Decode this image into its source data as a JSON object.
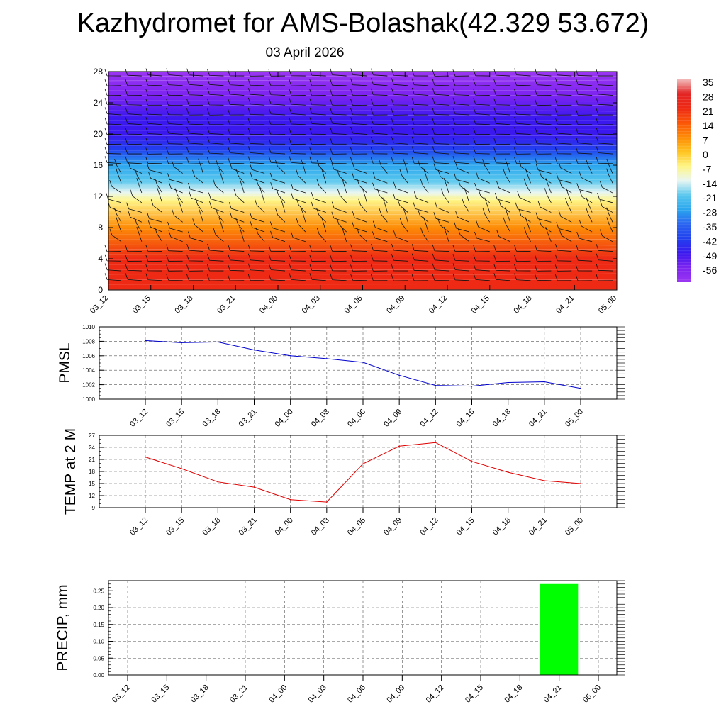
{
  "page": {
    "title": "Kazhydromet for AMS-Bolashak(42.329 53.672)",
    "date": "03 April 2026"
  },
  "time_labels": [
    "03_12",
    "03_15",
    "03_18",
    "03_21",
    "04_00",
    "04_03",
    "04_06",
    "04_09",
    "04_12",
    "04_15",
    "04_18",
    "04_21",
    "05_00"
  ],
  "chart_data": [
    {
      "type": "heatmap",
      "name": "vertical temperature cross-section with wind barbs",
      "x_categories": [
        "03_12",
        "03_15",
        "03_18",
        "03_21",
        "04_00",
        "04_03",
        "04_06",
        "04_09",
        "04_12",
        "04_15",
        "04_18",
        "04_21",
        "05_00"
      ],
      "ylim": [
        0,
        28
      ],
      "yticks": [
        0,
        4,
        8,
        12,
        16,
        20,
        24,
        28
      ],
      "colorbar": {
        "labels": [
          "35",
          "28",
          "21",
          "14",
          "7",
          "0",
          "-7",
          "-14",
          "-21",
          "-28",
          "-35",
          "-42",
          "-49",
          "-56"
        ],
        "stops": [
          {
            "value": 35,
            "color": "#f2b9b9"
          },
          {
            "value": 28,
            "color": "#e32424"
          },
          {
            "value": 21,
            "color": "#ee2a14"
          },
          {
            "value": 14,
            "color": "#fb5608"
          },
          {
            "value": 7,
            "color": "#fd8c06"
          },
          {
            "value": 0,
            "color": "#ffc420"
          },
          {
            "value": -7,
            "color": "#fff585"
          },
          {
            "value": -14,
            "color": "#e8f6f2"
          },
          {
            "value": -21,
            "color": "#58c7ee"
          },
          {
            "value": -28,
            "color": "#2aa5ee"
          },
          {
            "value": -35,
            "color": "#2b64f0"
          },
          {
            "value": -42,
            "color": "#2140ee"
          },
          {
            "value": -49,
            "color": "#3b18ee"
          },
          {
            "value": -56,
            "color": "#7d24f0"
          },
          {
            "value": -63,
            "color": "#9a35f2"
          }
        ]
      },
      "profile": [
        {
          "level": 0,
          "temp": 24
        },
        {
          "level": 4,
          "temp": 18
        },
        {
          "level": 8,
          "temp": 10
        },
        {
          "level": 11.5,
          "temp": -6
        },
        {
          "level": 12.5,
          "temp": -16
        },
        {
          "level": 14,
          "temp": -22
        },
        {
          "level": 16,
          "temp": -30
        },
        {
          "level": 18,
          "temp": -40
        },
        {
          "level": 20,
          "temp": -49
        },
        {
          "level": 22,
          "temp": -52
        },
        {
          "level": 25,
          "temp": -56
        },
        {
          "level": 28,
          "temp": -62
        }
      ]
    },
    {
      "type": "line",
      "ylabel": "PMSL",
      "categories": [
        "03_12",
        "03_15",
        "03_18",
        "03_21",
        "04_00",
        "04_03",
        "04_06",
        "04_09",
        "04_12",
        "04_15",
        "04_18",
        "04_21",
        "05_00"
      ],
      "values": [
        1008.1,
        1007.8,
        1007.9,
        1006.8,
        1006.0,
        1005.6,
        1005.1,
        1003.3,
        1001.9,
        1001.8,
        1002.3,
        1002.4,
        1001.5
      ],
      "ylim": [
        1000,
        1010
      ],
      "yticks": [
        "1000",
        "1002",
        "1004",
        "1006",
        "1008",
        "1010"
      ],
      "color": "#0000cc"
    },
    {
      "type": "line",
      "ylabel": "TEMP at 2 M",
      "categories": [
        "03_12",
        "03_15",
        "03_18",
        "03_21",
        "04_00",
        "04_03",
        "04_06",
        "04_09",
        "04_12",
        "04_15",
        "04_18",
        "04_21",
        "05_00"
      ],
      "values": [
        21.6,
        18.7,
        15.4,
        14.1,
        11.0,
        10.4,
        19.9,
        24.3,
        25.2,
        20.5,
        17.8,
        15.7,
        15.0
      ],
      "ylim": [
        9,
        27
      ],
      "yticks": [
        "9",
        "12",
        "15",
        "18",
        "21",
        "24",
        "27"
      ],
      "color": "#e00000"
    },
    {
      "type": "bar",
      "ylabel": "PRECIP, mm",
      "categories": [
        "03_12",
        "03_15",
        "03_18",
        "03_21",
        "04_00",
        "04_03",
        "04_06",
        "04_09",
        "04_12",
        "04_15",
        "04_18",
        "04_21",
        "05_00"
      ],
      "values": [
        0,
        0,
        0,
        0,
        0,
        0,
        0,
        0,
        0,
        0,
        0,
        0.27,
        0
      ],
      "ylim": [
        0,
        0.28
      ],
      "yticks": [
        "0.00",
        "0.05",
        "0.10",
        "0.15",
        "0.20",
        "0.25"
      ],
      "color": "#00ff00"
    }
  ]
}
